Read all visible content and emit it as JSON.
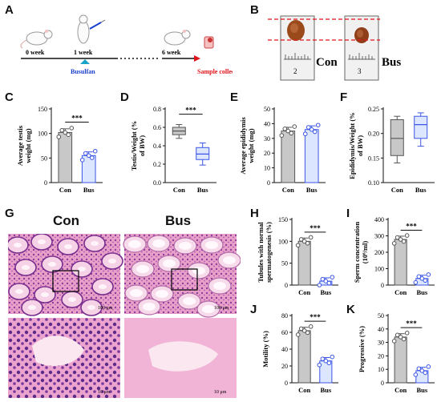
{
  "panel_letters": [
    "A",
    "B",
    "C",
    "D",
    "E",
    "F",
    "G",
    "H",
    "I",
    "J",
    "K"
  ],
  "timeline": {
    "weeks": [
      "0 week",
      "1 week",
      "6 week"
    ],
    "treatment": "Busulfan",
    "endpoint": "Sample collection",
    "accent": "#1a3fcf",
    "endpoint_color": "#e0141b"
  },
  "photo": {
    "groups": [
      "Con",
      "Bus"
    ],
    "ruler_marks": [
      "2",
      "3"
    ],
    "line_color": "#e0141b"
  },
  "histology": {
    "groups": [
      "Con",
      "Bus"
    ],
    "scale_top": "100 μm",
    "scale_bottom_con": "10 μm",
    "scale_bottom_bus": "10 μm"
  },
  "chart_data": [
    {
      "panel": "C",
      "type": "bar",
      "categories": [
        "Con",
        "Bus"
      ],
      "values": [
        102,
        55
      ],
      "ylabel": "Average testis weight (mg)",
      "ylim": [
        0,
        150
      ],
      "ticks": [
        0,
        50,
        100,
        150
      ],
      "significance": "***"
    },
    {
      "panel": "D",
      "type": "box",
      "categories": [
        "Con",
        "Bus"
      ],
      "box": [
        {
          "min": 0.48,
          "q1": 0.52,
          "median": 0.56,
          "q3": 0.6,
          "max": 0.63
        },
        {
          "min": 0.19,
          "q1": 0.25,
          "median": 0.31,
          "q3": 0.38,
          "max": 0.43
        }
      ],
      "ylabel": "Testis/Weight (% of BW)",
      "ylim": [
        0,
        0.8
      ],
      "ticks": [
        0.0,
        0.2,
        0.4,
        0.6,
        0.8
      ],
      "significance": "***"
    },
    {
      "panel": "E",
      "type": "bar",
      "categories": [
        "Con",
        "Bus"
      ],
      "values": [
        35,
        36
      ],
      "ylabel": "Average epididymis weight (mg)",
      "ylim": [
        0,
        50
      ],
      "ticks": [
        0,
        10,
        20,
        30,
        40,
        50
      ],
      "significance": ""
    },
    {
      "panel": "F",
      "type": "box",
      "categories": [
        "Con",
        "Bus"
      ],
      "box": [
        {
          "min": 0.14,
          "q1": 0.155,
          "median": 0.19,
          "q3": 0.228,
          "max": 0.235
        },
        {
          "min": 0.174,
          "q1": 0.19,
          "median": 0.218,
          "q3": 0.235,
          "max": 0.242
        }
      ],
      "ylabel": "Epididymis/Weight (% of BW)",
      "ylim": [
        0.1,
        0.25
      ],
      "ticks": [
        0.1,
        0.15,
        0.2,
        0.25
      ],
      "significance": ""
    },
    {
      "panel": "H",
      "type": "bar",
      "categories": [
        "Con",
        "Bus"
      ],
      "values": [
        100,
        9
      ],
      "ylabel": "Tubules with normal spermatogenesis (%)",
      "ylim": [
        0,
        150
      ],
      "ticks": [
        0,
        50,
        100,
        150
      ],
      "significance": "***"
    },
    {
      "panel": "I",
      "type": "bar",
      "categories": [
        "Con",
        "Bus"
      ],
      "values": [
        278,
        40
      ],
      "ylabel": "Sperm concentration (10⁶/ml)",
      "ylim": [
        0,
        400
      ],
      "ticks": [
        0,
        100,
        200,
        300,
        400
      ],
      "significance": "***"
    },
    {
      "panel": "J",
      "type": "bar",
      "categories": [
        "Con",
        "Bus"
      ],
      "values": [
        62,
        26
      ],
      "ylabel": "Motility (%)",
      "ylim": [
        0,
        80
      ],
      "ticks": [
        0,
        20,
        40,
        60,
        80
      ],
      "significance": "***"
    },
    {
      "panel": "K",
      "type": "bar",
      "categories": [
        "Con",
        "Bus"
      ],
      "values": [
        34,
        9
      ],
      "ylabel": "Progressive (%)",
      "ylim": [
        0,
        50
      ],
      "ticks": [
        0,
        10,
        20,
        30,
        40,
        50
      ],
      "significance": "***"
    }
  ],
  "colors": {
    "con": "#c8c8c8",
    "bus": "#3b55e6",
    "bus_fill": "#dde6ff"
  }
}
